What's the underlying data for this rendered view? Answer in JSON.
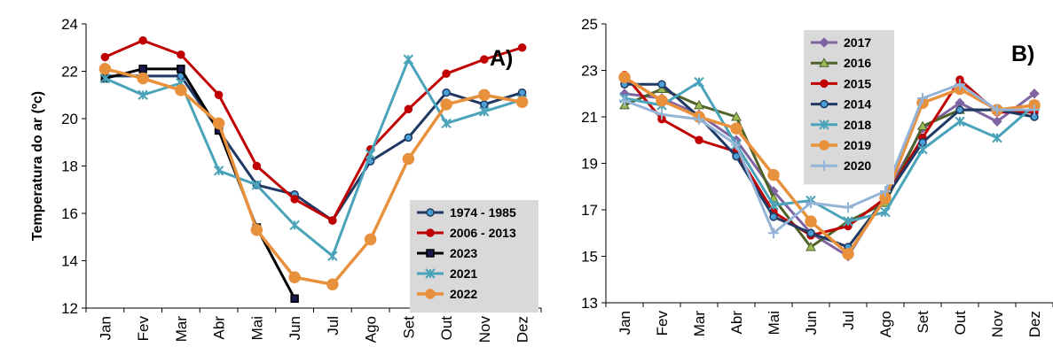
{
  "chart_data": [
    {
      "type": "line",
      "panel_label": "A)",
      "ylabel": "Temperatura do ar (ºc)",
      "ylim": [
        12,
        24
      ],
      "yticks": [
        12,
        14,
        16,
        18,
        20,
        22,
        24
      ],
      "categories": [
        "Jan",
        "Fev",
        "Mar",
        "Abr",
        "Mai",
        "Jun",
        "Jul",
        "Ago",
        "Set",
        "Out",
        "Nov",
        "Dez"
      ],
      "legend_position": "bottom-right",
      "series": [
        {
          "name": "1974 - 1985",
          "color": "#1f3864",
          "marker": "circle",
          "fill": "#4a9fd4",
          "width": 3,
          "values": [
            21.8,
            21.8,
            21.8,
            19.5,
            17.2,
            16.8,
            15.7,
            18.2,
            19.2,
            21.1,
            20.6,
            21.1
          ]
        },
        {
          "name": "2006 - 2013",
          "color": "#c00000",
          "marker": "circle",
          "fill": "#c00000",
          "width": 3,
          "values": [
            22.6,
            23.3,
            22.7,
            21.0,
            18.0,
            16.6,
            15.7,
            18.7,
            20.4,
            21.9,
            22.5,
            23.0
          ]
        },
        {
          "name": "2023",
          "color": "#000000",
          "marker": "square",
          "fill": "#1a1a4e",
          "width": 3,
          "values": [
            21.7,
            22.1,
            22.1,
            19.5,
            15.4,
            12.4,
            null,
            null,
            null,
            null,
            null,
            null
          ]
        },
        {
          "name": "2021",
          "color": "#4aa3b9",
          "marker": "asterisk",
          "fill": "#4aa3b9",
          "width": 3,
          "values": [
            21.7,
            21.0,
            21.5,
            17.8,
            17.2,
            15.5,
            14.2,
            18.5,
            22.5,
            19.8,
            20.3,
            20.8
          ]
        },
        {
          "name": "2022",
          "color": "#e8913c",
          "marker": "circle",
          "fill": "#e8913c",
          "width": 3.5,
          "msize": 6,
          "values": [
            22.1,
            21.7,
            21.2,
            19.8,
            15.3,
            13.3,
            13.0,
            14.9,
            18.3,
            20.6,
            21.0,
            20.7
          ]
        }
      ]
    },
    {
      "type": "line",
      "panel_label": "B)",
      "ylim": [
        13,
        25
      ],
      "yticks": [
        13,
        15,
        17,
        19,
        21,
        23,
        25
      ],
      "categories": [
        "Jan",
        "Fev",
        "Mar",
        "Abr",
        "Mai",
        "Jun",
        "Jul",
        "Ago",
        "Set",
        "Out",
        "Nov",
        "Dez"
      ],
      "legend_position": "top-left",
      "series": [
        {
          "name": "2017",
          "color": "#8064a2",
          "marker": "diamond",
          "fill": "#8064a2",
          "width": 3,
          "values": [
            22.0,
            21.8,
            21.1,
            20.0,
            17.8,
            16.0,
            15.0,
            17.6,
            20.5,
            21.6,
            20.8,
            22.0
          ]
        },
        {
          "name": "2016",
          "color": "#4f6228",
          "marker": "triangle",
          "fill": "#9bbb59",
          "width": 3,
          "values": [
            21.5,
            22.2,
            21.5,
            21.0,
            17.5,
            15.4,
            16.5,
            17.3,
            20.6,
            21.3,
            21.3,
            21.5
          ]
        },
        {
          "name": "2015",
          "color": "#c00000",
          "marker": "circle",
          "fill": "#c00000",
          "width": 3,
          "values": [
            22.8,
            20.9,
            20.0,
            19.5,
            16.9,
            15.9,
            16.3,
            17.5,
            20.1,
            22.6,
            21.2,
            21.2
          ]
        },
        {
          "name": "2014",
          "color": "#1f3864",
          "marker": "circle",
          "fill": "#4a9fd4",
          "width": 3,
          "values": [
            22.4,
            22.4,
            21.0,
            19.3,
            16.7,
            16.0,
            15.4,
            17.5,
            19.9,
            21.3,
            21.3,
            21.0
          ]
        },
        {
          "name": "2018",
          "color": "#4aa3b9",
          "marker": "asterisk",
          "fill": "#4aa3b9",
          "width": 3,
          "values": [
            21.8,
            21.5,
            22.5,
            19.8,
            17.2,
            17.4,
            16.5,
            16.9,
            19.6,
            20.8,
            20.1,
            21.5
          ]
        },
        {
          "name": "2019",
          "color": "#e8913c",
          "marker": "circle",
          "fill": "#e8913c",
          "width": 3.5,
          "msize": 6,
          "values": [
            22.7,
            21.7,
            21.0,
            20.5,
            18.5,
            16.5,
            15.1,
            17.5,
            21.6,
            22.2,
            21.3,
            21.5
          ]
        },
        {
          "name": "2020",
          "color": "#95b3d7",
          "marker": "plus",
          "fill": "#95b3d7",
          "width": 3,
          "values": [
            21.7,
            21.1,
            20.9,
            19.8,
            16.0,
            17.3,
            17.1,
            17.8,
            21.8,
            22.4,
            21.3,
            21.3
          ]
        }
      ]
    }
  ]
}
